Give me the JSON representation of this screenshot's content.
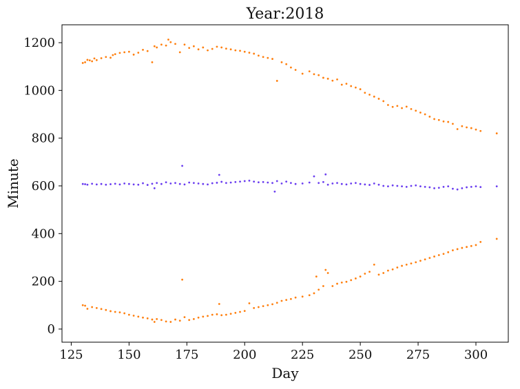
{
  "chart_data": {
    "type": "scatter",
    "title": "Year:2018",
    "xlabel": "Day",
    "ylabel": "Minute",
    "xlim": [
      121,
      314
    ],
    "ylim": [
      -55,
      1275
    ],
    "xticks": [
      125,
      150,
      175,
      200,
      225,
      250,
      275,
      300
    ],
    "yticks": [
      0,
      200,
      400,
      600,
      800,
      1000,
      1200
    ],
    "grid": false,
    "legend": "none",
    "series": [
      {
        "color": "#ff7f0e",
        "x": [
          130,
          131,
          132,
          133,
          134,
          135,
          136,
          138,
          140,
          142,
          143,
          144,
          146,
          148,
          150,
          152,
          154,
          156,
          158,
          160,
          161,
          162,
          164,
          166,
          167,
          168,
          170,
          172,
          174,
          176,
          178,
          180,
          182,
          184,
          186,
          188,
          190,
          192,
          194,
          196,
          198,
          200,
          202,
          204,
          206,
          208,
          210,
          212,
          214,
          216,
          218,
          220,
          222,
          225,
          228,
          230,
          232,
          234,
          236,
          238,
          240,
          242,
          244,
          246,
          248,
          250,
          252,
          254,
          256,
          258,
          260,
          262,
          264,
          266,
          268,
          270,
          272,
          274,
          276,
          278,
          280,
          282,
          284,
          286,
          288,
          290,
          292,
          294,
          296,
          298,
          300,
          302,
          309
        ],
        "y": [
          1115,
          1118,
          1128,
          1126,
          1122,
          1134,
          1127,
          1135,
          1140,
          1137,
          1148,
          1152,
          1157,
          1160,
          1162,
          1150,
          1158,
          1170,
          1165,
          1118,
          1185,
          1180,
          1192,
          1188,
          1213,
          1202,
          1195,
          1160,
          1192,
          1178,
          1185,
          1172,
          1180,
          1168,
          1174,
          1183,
          1180,
          1175,
          1172,
          1168,
          1166,
          1162,
          1158,
          1154,
          1146,
          1140,
          1136,
          1132,
          1040,
          1118,
          1110,
          1096,
          1086,
          1070,
          1080,
          1068,
          1064,
          1053,
          1049,
          1041,
          1046,
          1024,
          1028,
          1018,
          1012,
          1005,
          990,
          982,
          974,
          965,
          955,
          939,
          931,
          935,
          926,
          932,
          922,
          915,
          907,
          900,
          890,
          880,
          876,
          870,
          868,
          860,
          838,
          850,
          845,
          842,
          836,
          830,
          820
        ]
      },
      {
        "color": "#6a3df0",
        "x": [
          130,
          131,
          132,
          134,
          136,
          138,
          140,
          142,
          144,
          146,
          148,
          150,
          152,
          154,
          156,
          158,
          160,
          161,
          162,
          164,
          166,
          168,
          170,
          172,
          173,
          174,
          176,
          178,
          180,
          182,
          184,
          186,
          188,
          189,
          190,
          192,
          194,
          196,
          198,
          200,
          202,
          204,
          206,
          208,
          210,
          212,
          213,
          214,
          216,
          218,
          220,
          222,
          225,
          228,
          230,
          232,
          234,
          235,
          236,
          238,
          240,
          242,
          244,
          246,
          248,
          250,
          252,
          254,
          256,
          258,
          260,
          262,
          264,
          266,
          268,
          270,
          272,
          274,
          276,
          278,
          280,
          282,
          284,
          286,
          288,
          290,
          292,
          294,
          296,
          298,
          300,
          302,
          309
        ],
        "y": [
          608,
          607,
          605,
          609,
          606,
          608,
          605,
          607,
          609,
          606,
          610,
          608,
          606,
          605,
          611,
          604,
          609,
          590,
          612,
          608,
          615,
          610,
          612,
          608,
          684,
          606,
          614,
          612,
          610,
          608,
          606,
          611,
          613,
          646,
          617,
          612,
          614,
          616,
          618,
          620,
          622,
          618,
          615,
          616,
          614,
          612,
          576,
          620,
          610,
          618,
          612,
          608,
          610,
          614,
          640,
          612,
          616,
          648,
          605,
          610,
          612,
          608,
          606,
          610,
          612,
          608,
          606,
          604,
          610,
          605,
          600,
          598,
          602,
          600,
          598,
          596,
          600,
          602,
          598,
          596,
          594,
          590,
          592,
          596,
          598,
          588,
          585,
          590,
          594,
          596,
          598,
          595,
          598
        ]
      },
      {
        "color": "#ff7f0e",
        "x": [
          130,
          131,
          132,
          134,
          136,
          138,
          140,
          142,
          144,
          146,
          148,
          150,
          152,
          154,
          156,
          158,
          160,
          161,
          162,
          164,
          166,
          168,
          170,
          172,
          173,
          174,
          176,
          178,
          180,
          182,
          184,
          186,
          188,
          189,
          190,
          192,
          194,
          196,
          198,
          200,
          202,
          204,
          206,
          208,
          210,
          212,
          214,
          216,
          218,
          220,
          222,
          225,
          228,
          230,
          231,
          232,
          234,
          235,
          236,
          238,
          240,
          242,
          244,
          246,
          248,
          250,
          252,
          254,
          256,
          258,
          260,
          262,
          264,
          266,
          268,
          270,
          272,
          274,
          276,
          278,
          280,
          282,
          284,
          286,
          288,
          290,
          292,
          294,
          296,
          298,
          300,
          302,
          309
        ],
        "y": [
          100,
          98,
          85,
          92,
          88,
          84,
          80,
          75,
          72,
          70,
          66,
          60,
          56,
          52,
          48,
          45,
          40,
          30,
          42,
          38,
          32,
          30,
          40,
          35,
          207,
          50,
          38,
          42,
          48,
          52,
          55,
          60,
          62,
          105,
          58,
          60,
          64,
          68,
          72,
          76,
          108,
          88,
          92,
          96,
          100,
          104,
          110,
          118,
          122,
          126,
          132,
          136,
          142,
          150,
          220,
          165,
          180,
          248,
          235,
          180,
          190,
          195,
          198,
          205,
          212,
          220,
          232,
          240,
          270,
          228,
          235,
          245,
          250,
          258,
          265,
          270,
          275,
          280,
          286,
          292,
          298,
          304,
          310,
          315,
          322,
          330,
          335,
          340,
          344,
          348,
          352,
          365,
          378
        ]
      }
    ]
  }
}
